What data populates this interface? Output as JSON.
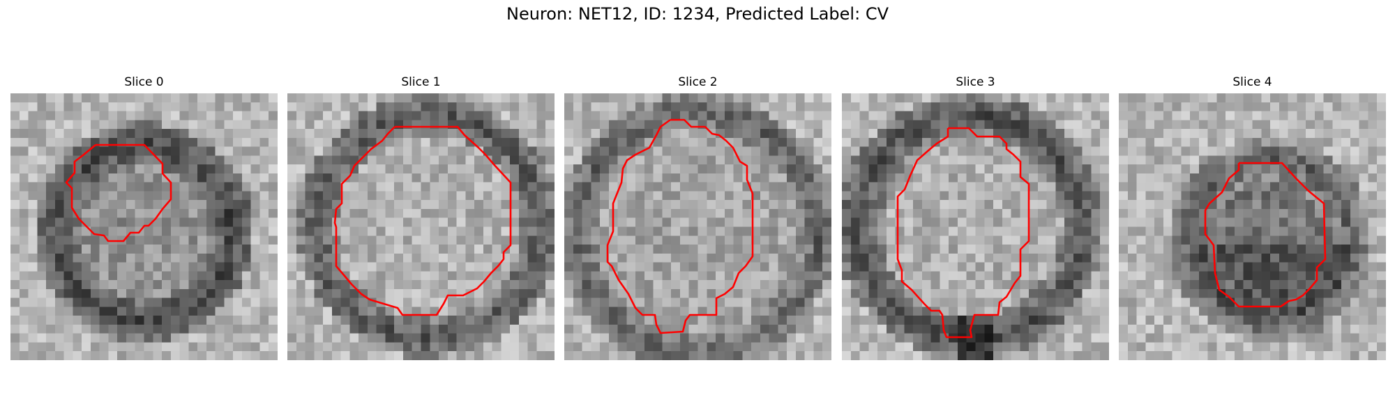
{
  "figure": {
    "title": "Neuron: NET12, ID: 1234, Predicted Label: CV"
  },
  "panels": [
    {
      "title": "Slice 0"
    },
    {
      "title": "Slice 1"
    },
    {
      "title": "Slice 2"
    },
    {
      "title": "Slice 3"
    },
    {
      "title": "Slice 4"
    }
  ],
  "colors": {
    "contour": "#ff0000",
    "colormap": "gray"
  }
}
